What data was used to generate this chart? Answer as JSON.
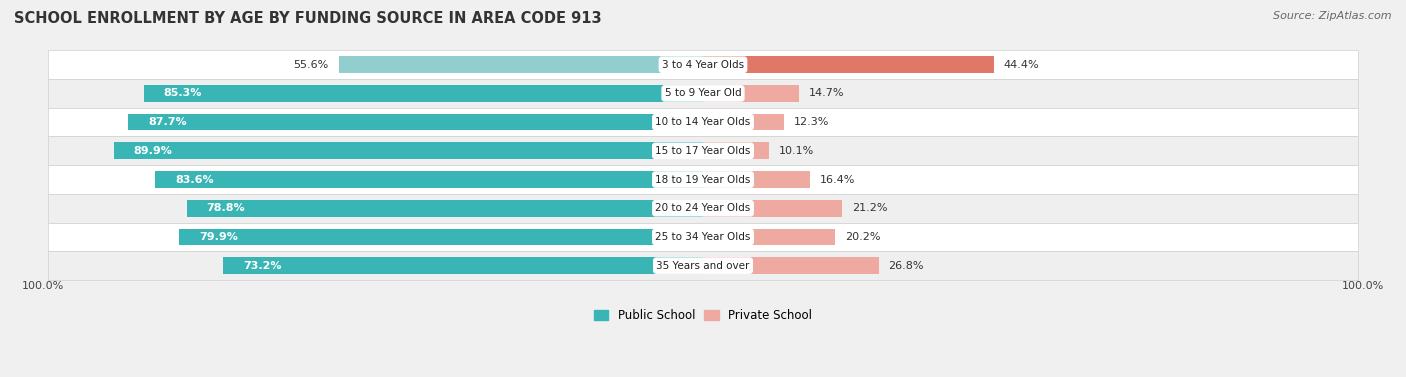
{
  "title": "SCHOOL ENROLLMENT BY AGE BY FUNDING SOURCE IN AREA CODE 913",
  "source": "Source: ZipAtlas.com",
  "categories": [
    "3 to 4 Year Olds",
    "5 to 9 Year Old",
    "10 to 14 Year Olds",
    "15 to 17 Year Olds",
    "18 to 19 Year Olds",
    "20 to 24 Year Olds",
    "25 to 34 Year Olds",
    "35 Years and over"
  ],
  "public_values": [
    55.6,
    85.3,
    87.7,
    89.9,
    83.6,
    78.8,
    79.9,
    73.2
  ],
  "private_values": [
    44.4,
    14.7,
    12.3,
    10.1,
    16.4,
    21.2,
    20.2,
    26.8
  ],
  "public_color_dark": "#3ab5b5",
  "public_color_light": "#92cece",
  "private_color_dark": "#e07868",
  "private_color_light": "#eeaaa0",
  "bg_color": "#f0f0f0",
  "row_bg_even": "#f8f8f8",
  "row_bg_odd": "#ebebeb",
  "title_fontsize": 10.5,
  "source_fontsize": 8,
  "bar_label_fontsize": 8,
  "category_fontsize": 7.5,
  "legend_fontsize": 8.5,
  "axis_label_fontsize": 8,
  "x_left_label": "100.0%",
  "x_right_label": "100.0%"
}
